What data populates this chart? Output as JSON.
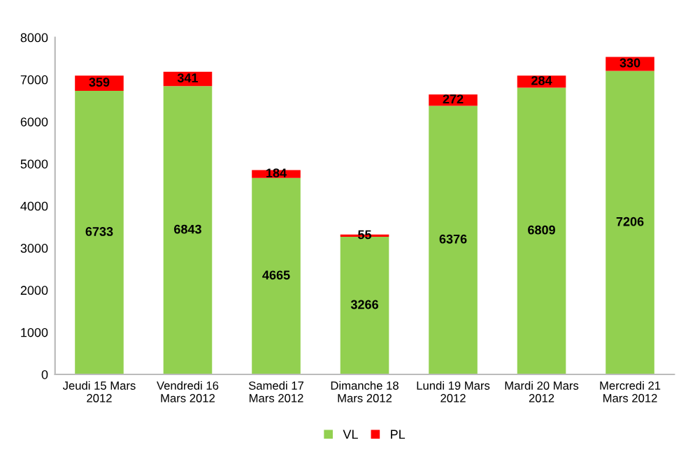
{
  "chart_data": {
    "type": "bar",
    "stacked": true,
    "categories": [
      "Jeudi 15 Mars\n2012",
      "Vendredi 16\nMars 2012",
      "Samedi 17\nMars 2012",
      "Dimanche 18\nMars 2012",
      "Lundi 19 Mars\n2012",
      "Mardi 20 Mars\n2012",
      "Mercredi 21\nMars 2012"
    ],
    "series": [
      {
        "name": "VL",
        "color": "#92d050",
        "values": [
          6733,
          6843,
          4665,
          3266,
          6376,
          6809,
          7206
        ]
      },
      {
        "name": "PL",
        "color": "#ff0000",
        "values": [
          359,
          341,
          184,
          55,
          272,
          284,
          330
        ]
      }
    ],
    "ylim": [
      0,
      8000
    ],
    "yticks": [
      0,
      1000,
      2000,
      3000,
      4000,
      5000,
      6000,
      7000,
      8000
    ],
    "data_labels": true,
    "legend": "bottom",
    "grid": false
  }
}
